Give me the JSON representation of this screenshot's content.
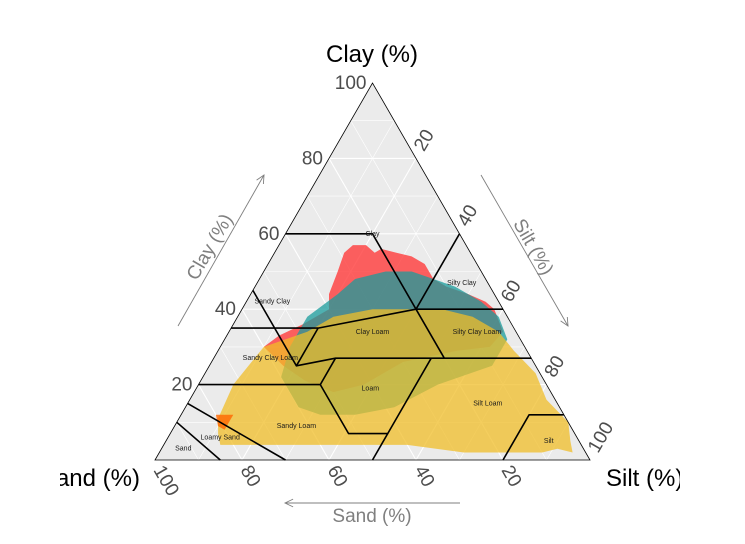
{
  "chart_data": {
    "type": "ternary",
    "axes": {
      "clay": {
        "title": "Clay (%)",
        "arrow_label": "Clay (%)"
      },
      "silt": {
        "title": "Silt (%)",
        "arrow_label": "Silt (%)"
      },
      "sand": {
        "title": "Sand (%)",
        "arrow_label": "Sand (%)"
      }
    },
    "ticks": {
      "clay": [
        "20",
        "40",
        "60",
        "80",
        "100"
      ],
      "silt": [
        "20",
        "40",
        "60",
        "80",
        "100"
      ],
      "sand": [
        "20",
        "40",
        "60",
        "80",
        "100"
      ]
    },
    "grid": true,
    "background": "#ebebeb",
    "texture_classes": [
      {
        "name": "Clay",
        "sand": 20,
        "silt": 20,
        "clay": 60
      },
      {
        "name": "Silty Clay",
        "sand": 6,
        "silt": 47,
        "clay": 47
      },
      {
        "name": "Sandy Clay",
        "sand": 52,
        "silt": 6,
        "clay": 42
      },
      {
        "name": "Clay Loam",
        "sand": 33,
        "silt": 33,
        "clay": 34
      },
      {
        "name": "Silty Clay Loam",
        "sand": 9,
        "silt": 57,
        "clay": 34
      },
      {
        "name": "Sandy Clay Loam",
        "sand": 60,
        "silt": 13,
        "clay": 27
      },
      {
        "name": "Loam",
        "sand": 41,
        "silt": 40,
        "clay": 19
      },
      {
        "name": "Silt Loam",
        "sand": 16,
        "silt": 69,
        "clay": 15
      },
      {
        "name": "Sandy Loam",
        "sand": 63,
        "silt": 28,
        "clay": 9
      },
      {
        "name": "Loamy Sand",
        "sand": 82,
        "silt": 12,
        "clay": 6
      },
      {
        "name": "Sand",
        "sand": 92,
        "silt": 5,
        "clay": 3
      },
      {
        "name": "Silt",
        "sand": 7,
        "silt": 88,
        "clay": 5
      }
    ],
    "boundaries": [
      [
        [
          55,
          0,
          45
        ],
        [
          55,
          20,
          25
        ],
        [
          45,
          20,
          35
        ],
        [
          20,
          40,
          40
        ],
        [
          20,
          20,
          60
        ],
        [
          40,
          0,
          60
        ]
      ],
      [
        [
          0,
          60,
          40
        ],
        [
          20,
          40,
          40
        ]
      ],
      [
        [
          0,
          40,
          60
        ],
        [
          20,
          40,
          40
        ]
      ],
      [
        [
          45,
          20,
          35
        ],
        [
          65,
          0,
          35
        ]
      ],
      [
        [
          20,
          40,
          40
        ],
        [
          20,
          53,
          27
        ],
        [
          0,
          73,
          27
        ]
      ],
      [
        [
          20,
          53,
          27
        ],
        [
          45,
          28,
          27
        ],
        [
          55,
          20,
          25
        ]
      ],
      [
        [
          45,
          28,
          27
        ],
        [
          52,
          28,
          20
        ],
        [
          80,
          0,
          20
        ]
      ],
      [
        [
          52,
          28,
          20
        ],
        [
          52,
          41,
          7
        ],
        [
          43,
          50,
          7
        ],
        [
          23,
          50,
          27
        ]
      ],
      [
        [
          0,
          88,
          12
        ],
        [
          8,
          80,
          12
        ],
        [
          20,
          80,
          0
        ]
      ],
      [
        [
          50,
          50,
          0
        ],
        [
          43,
          50,
          7
        ]
      ],
      [
        [
          70,
          30,
          0
        ],
        [
          85,
          0,
          15
        ]
      ],
      [
        [
          85,
          15,
          0
        ],
        [
          90,
          0,
          10
        ]
      ]
    ],
    "series": [
      {
        "color": "#ff3b3b",
        "opacity": 0.8,
        "polygon": [
          [
            40,
            20,
            40
          ],
          [
            38,
            18,
            44
          ],
          [
            33,
            17,
            50
          ],
          [
            29,
            16,
            55
          ],
          [
            26,
            17,
            57
          ],
          [
            23,
            20,
            57
          ],
          [
            22,
            23,
            55
          ],
          [
            20,
            24,
            56
          ],
          [
            17,
            28,
            55
          ],
          [
            14,
            32,
            54
          ],
          [
            12,
            36,
            52
          ],
          [
            12,
            40,
            48
          ],
          [
            10,
            44,
            46
          ],
          [
            6,
            50,
            44
          ],
          [
            3,
            55,
            42
          ],
          [
            2,
            58,
            40
          ],
          [
            3,
            63,
            34
          ],
          [
            8,
            62,
            30
          ],
          [
            16,
            55,
            29
          ],
          [
            30,
            44,
            26
          ],
          [
            42,
            38,
            20
          ],
          [
            50,
            32,
            18
          ],
          [
            55,
            24,
            21
          ],
          [
            58,
            17,
            25
          ],
          [
            60,
            10,
            30
          ],
          [
            55,
            12,
            33
          ],
          [
            48,
            16,
            36
          ]
        ]
      },
      {
        "color": "#1a9c9c",
        "opacity": 0.75,
        "polygon": [
          [
            46,
            16,
            38
          ],
          [
            36,
            20,
            44
          ],
          [
            30,
            22,
            48
          ],
          [
            22,
            28,
            50
          ],
          [
            16,
            34,
            50
          ],
          [
            12,
            40,
            48
          ],
          [
            8,
            46,
            46
          ],
          [
            4,
            54,
            42
          ],
          [
            2,
            60,
            38
          ],
          [
            3,
            65,
            32
          ],
          [
            10,
            65,
            25
          ],
          [
            25,
            55,
            20
          ],
          [
            38,
            48,
            14
          ],
          [
            48,
            40,
            12
          ],
          [
            56,
            32,
            12
          ],
          [
            60,
            26,
            14
          ],
          [
            60,
            18,
            22
          ],
          [
            54,
            16,
            30
          ]
        ]
      },
      {
        "color": "#f0be28",
        "opacity": 0.75,
        "polygon": [
          [
            60,
            10,
            30
          ],
          [
            48,
            18,
            34
          ],
          [
            40,
            22,
            38
          ],
          [
            30,
            30,
            40
          ],
          [
            22,
            38,
            40
          ],
          [
            14,
            46,
            40
          ],
          [
            8,
            54,
            38
          ],
          [
            4,
            62,
            34
          ],
          [
            3,
            68,
            29
          ],
          [
            1,
            76,
            23
          ],
          [
            2,
            82,
            16
          ],
          [
            0,
            90,
            10
          ],
          [
            2,
            93,
            5
          ],
          [
            3,
            95,
            2
          ],
          [
            6,
            91,
            3
          ],
          [
            10,
            88,
            2
          ],
          [
            18,
            80,
            2
          ],
          [
            28,
            70,
            2
          ],
          [
            40,
            56,
            4
          ],
          [
            52,
            44,
            4
          ],
          [
            62,
            34,
            4
          ],
          [
            72,
            24,
            4
          ],
          [
            78,
            18,
            4
          ],
          [
            83,
            13,
            4
          ],
          [
            82,
            11,
            7
          ],
          [
            80,
            9,
            11
          ],
          [
            72,
            8,
            20
          ],
          [
            66,
            9,
            25
          ]
        ]
      },
      {
        "color": "#ff6600",
        "opacity": 0.8,
        "polygon": [
          [
            80,
            8,
            12
          ],
          [
            76,
            12,
            12
          ],
          [
            78,
            12,
            10
          ],
          [
            80,
            12,
            8
          ],
          [
            81,
            10,
            9
          ]
        ]
      }
    ]
  }
}
